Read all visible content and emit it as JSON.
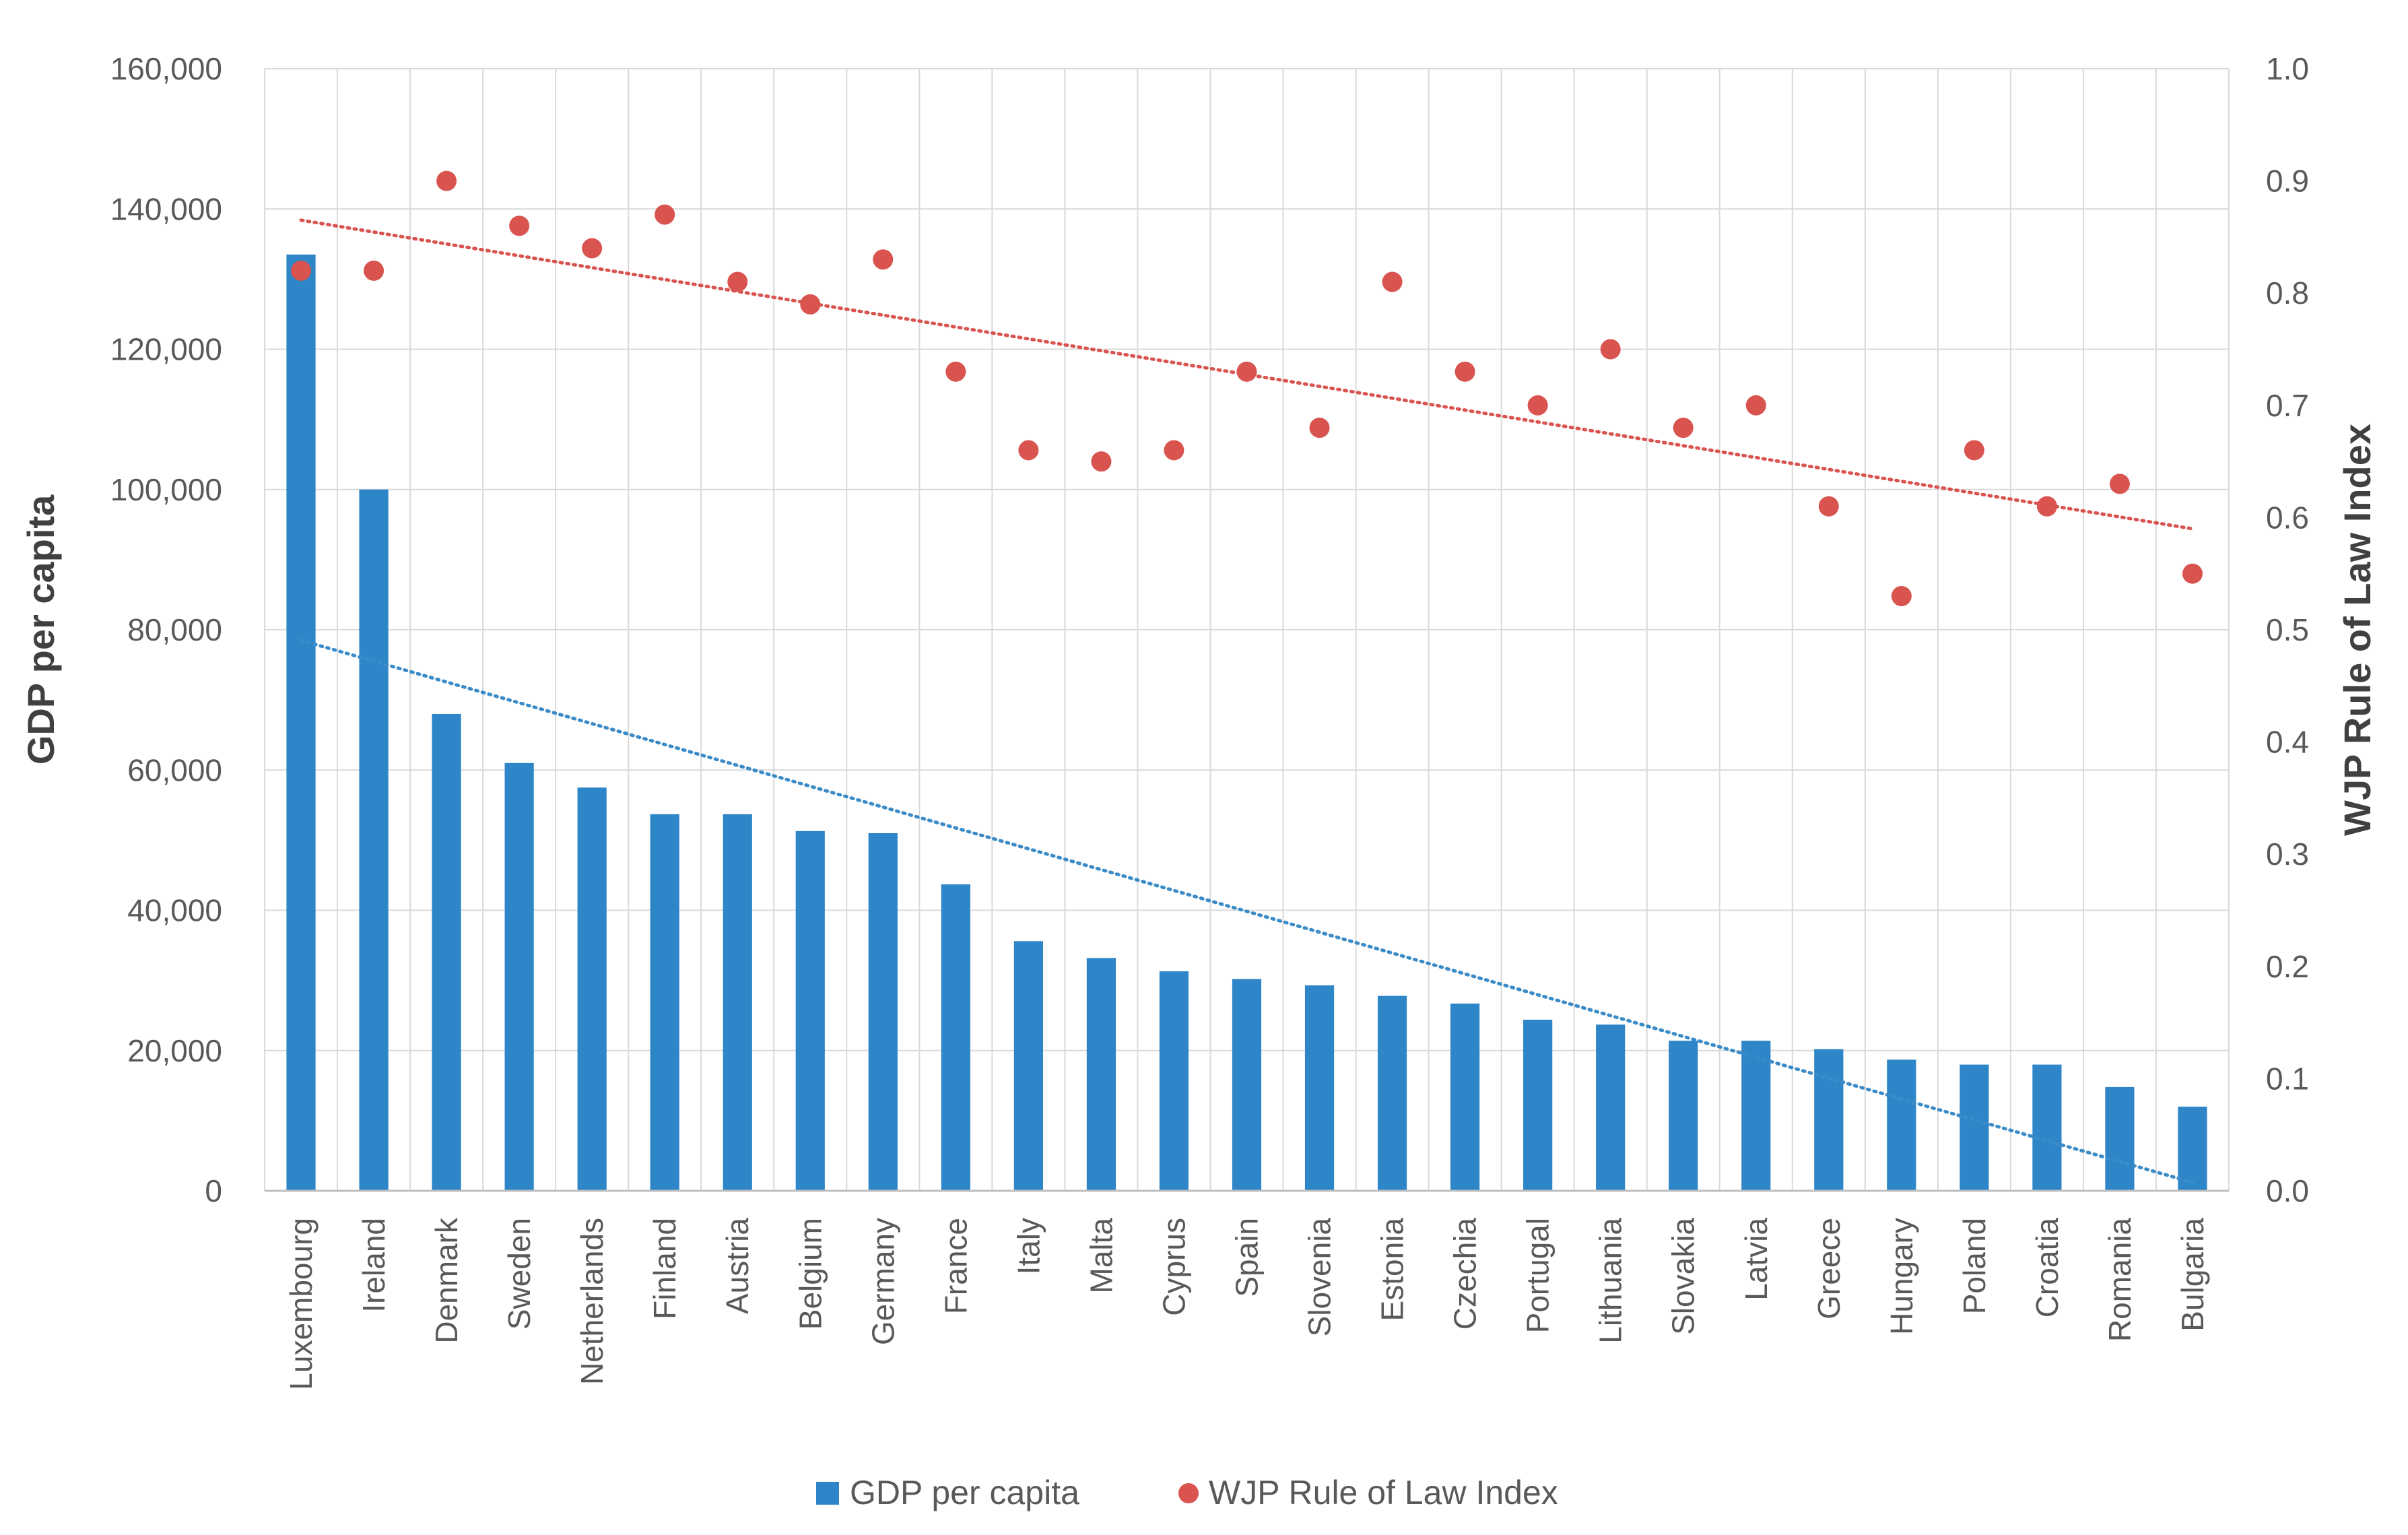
{
  "chart_data": {
    "type": "bar",
    "categories": [
      "Luxembourg",
      "Ireland",
      "Denmark",
      "Sweden",
      "Netherlands",
      "Finland",
      "Austria",
      "Belgium",
      "Germany",
      "France",
      "Italy",
      "Malta",
      "Cyprus",
      "Spain",
      "Slovenia",
      "Estonia",
      "Czechia",
      "Portugal",
      "Lithuania",
      "Slovakia",
      "Latvia",
      "Greece",
      "Hungary",
      "Poland",
      "Croatia",
      "Romania",
      "Bulgaria"
    ],
    "series": [
      {
        "name": "GDP per capita",
        "type": "bar",
        "axis": "left",
        "color": "#2e86c9",
        "values": [
          133500,
          100000,
          68000,
          61000,
          57500,
          53700,
          53700,
          51300,
          51000,
          43700,
          35600,
          33200,
          31300,
          30200,
          29300,
          27800,
          26700,
          24400,
          23700,
          21400,
          21400,
          20200,
          18700,
          18000,
          18000,
          14800,
          12000
        ]
      },
      {
        "name": "WJP Rule of Law Index",
        "type": "scatter",
        "axis": "right",
        "color": "#d9534f",
        "values": [
          0.82,
          0.82,
          0.9,
          0.86,
          0.84,
          0.87,
          0.81,
          0.79,
          0.83,
          0.73,
          0.66,
          0.65,
          0.66,
          0.73,
          0.68,
          0.81,
          0.73,
          0.7,
          0.75,
          0.68,
          0.7,
          0.61,
          0.53,
          0.66,
          0.61,
          0.63,
          0.55
        ]
      }
    ],
    "trendlines": [
      {
        "series": "GDP per capita",
        "style": "dotted",
        "color": "#3a8bc8",
        "start": 78500,
        "end": 1200
      },
      {
        "series": "WJP Rule of Law Index",
        "style": "dotted",
        "color": "#d9534f",
        "start": 0.865,
        "end": 0.59
      }
    ],
    "y_left": {
      "label": "GDP per capita",
      "min": 0,
      "max": 160000,
      "step": 20000,
      "ticks": [
        "0",
        "20,000",
        "40,000",
        "60,000",
        "80,000",
        "100,000",
        "120,000",
        "140,000",
        "160,000"
      ]
    },
    "y_right": {
      "label": "WJP Rule of Law Index",
      "min": 0,
      "max": 1.0,
      "step": 0.1,
      "ticks": [
        "0.0",
        "0.1",
        "0.2",
        "0.3",
        "0.4",
        "0.5",
        "0.6",
        "0.7",
        "0.8",
        "0.9",
        "1.0"
      ]
    },
    "grid": true,
    "grid_color": "#d9d9d9",
    "legend": {
      "position": "bottom",
      "items": [
        "GDP per capita",
        "WJP Rule of Law Index"
      ]
    }
  }
}
